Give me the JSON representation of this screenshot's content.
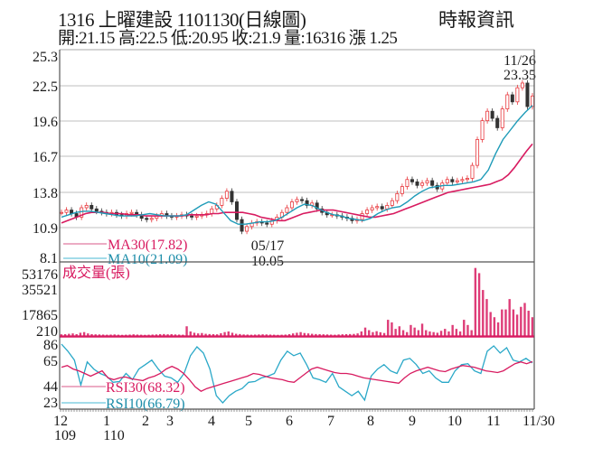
{
  "header": {
    "title": "1316  上曜建設 1101130(日線圖)",
    "brand": "時報資訊",
    "stats": "開:21.15 高:22.5 低:20.95 收:21.9 量:16316 漲 1.25"
  },
  "colors": {
    "up": "#e8383d",
    "down": "#333333",
    "ma30": "#d81b60",
    "ma10": "#1e9bb8",
    "volume": "#d81b60",
    "rsi30": "#d81b60",
    "rsi10": "#2aa8c8",
    "grid": "#cccccc",
    "frame": "#555555"
  },
  "chart_data": [
    {
      "type": "line",
      "title": "1316 上曜建設 日線圖 (price)",
      "ylabel": "",
      "yticks": [
        25.3,
        22.5,
        19.6,
        16.7,
        13.8,
        10.9,
        8.1
      ],
      "ylim": [
        8.1,
        25.3
      ],
      "grid": true,
      "x_ticks": [
        "12",
        "1",
        "2",
        "3",
        "4",
        "5",
        "6",
        "7",
        "8",
        "9",
        "10",
        "11",
        "11/30"
      ],
      "x_year_labels": [
        "109",
        "110"
      ],
      "annotations": [
        {
          "label": "11/26",
          "value": "23.35",
          "note": "high"
        },
        {
          "label": "05/17",
          "value": "10.05",
          "note": "low"
        }
      ],
      "legend": [
        {
          "name": "MA30(17.82)",
          "color": "#d81b60"
        },
        {
          "name": "MA10(21.09)",
          "color": "#1e9bb8"
        }
      ],
      "series": [
        {
          "name": "close",
          "values": [
            12.0,
            12.2,
            11.9,
            11.6,
            12.4,
            12.6,
            12.3,
            12.1,
            12.0,
            11.9,
            12.0,
            11.8,
            11.7,
            11.9,
            12.0,
            11.8,
            11.5,
            11.4,
            11.5,
            11.7,
            11.9,
            11.7,
            11.6,
            11.7,
            11.8,
            11.7,
            11.6,
            11.7,
            11.8,
            11.9,
            12.3,
            12.6,
            13.2,
            13.8,
            12.9,
            11.4,
            10.4,
            10.8,
            11.1,
            11.2,
            11.1,
            11.0,
            11.3,
            11.6,
            12.0,
            12.4,
            12.9,
            13.1,
            13.0,
            12.6,
            12.8,
            12.3,
            12.0,
            11.8,
            11.8,
            11.7,
            11.6,
            11.5,
            11.3,
            11.4,
            11.9,
            12.2,
            12.4,
            12.5,
            12.3,
            12.6,
            13.0,
            13.6,
            14.2,
            14.8,
            14.6,
            14.3,
            14.5,
            14.7,
            14.3,
            14.0,
            14.5,
            14.8,
            14.6,
            14.7,
            14.8,
            14.9,
            16.0,
            18.2,
            19.8,
            20.6,
            20.0,
            19.2,
            20.8,
            22.0,
            21.4,
            22.6,
            23.0,
            21.0,
            21.9
          ]
        },
        {
          "name": "MA30",
          "current": 17.82,
          "values": [
            11.1,
            11.3,
            11.5,
            11.7,
            11.9,
            12.0,
            12.0,
            12.0,
            11.9,
            11.9,
            11.9,
            11.8,
            11.8,
            11.8,
            11.7,
            11.7,
            11.7,
            11.7,
            11.7,
            11.7,
            11.7,
            11.8,
            11.8,
            11.8,
            11.8,
            11.9,
            11.9,
            12.0,
            12.0,
            12.0,
            12.0,
            11.9,
            11.8,
            11.6,
            11.5,
            11.4,
            11.3,
            11.3,
            11.5,
            11.7,
            11.9,
            12.0,
            12.1,
            12.2,
            12.2,
            12.2,
            12.1,
            12.0,
            11.9,
            11.8,
            11.7,
            11.6,
            11.6,
            11.7,
            11.8,
            11.9,
            12.1,
            12.3,
            12.5,
            12.7,
            12.9,
            13.1,
            13.3,
            13.5,
            13.7,
            13.8,
            13.9,
            14.0,
            14.1,
            14.2,
            14.3,
            14.4,
            14.6,
            14.8,
            15.2,
            15.8,
            16.5,
            17.2,
            17.82
          ]
        },
        {
          "name": "MA10",
          "current": 21.09,
          "values": [
            11.6,
            11.8,
            12.0,
            12.1,
            12.1,
            12.0,
            11.9,
            11.8,
            11.7,
            11.7,
            11.7,
            11.8,
            11.9,
            11.8,
            11.7,
            11.7,
            11.7,
            11.8,
            12.2,
            12.6,
            12.9,
            12.7,
            12.0,
            11.3,
            11.0,
            11.0,
            11.1,
            11.2,
            11.2,
            11.3,
            11.6,
            12.0,
            12.4,
            12.7,
            12.6,
            12.3,
            12.0,
            11.8,
            11.7,
            11.5,
            11.4,
            11.3,
            11.5,
            11.9,
            12.2,
            12.4,
            12.5,
            12.9,
            13.4,
            13.8,
            14.1,
            14.2,
            14.3,
            14.3,
            14.4,
            14.5,
            14.6,
            14.8,
            15.6,
            17.0,
            18.2,
            19.0,
            19.8,
            20.5,
            21.09
          ]
        }
      ]
    },
    {
      "type": "bar",
      "title": "成交量(張)",
      "yticks": [
        53176,
        35521,
        17865,
        210
      ],
      "ylim": [
        210,
        53176
      ],
      "series": [
        {
          "name": "volume",
          "values": [
            800,
            900,
            1200,
            1500,
            900,
            2000,
            2500,
            1500,
            900,
            800,
            700,
            600,
            500,
            600,
            700,
            500,
            400,
            500,
            600,
            800,
            600,
            500,
            400,
            500,
            600,
            700,
            900,
            1000,
            800,
            900,
            700,
            600,
            500,
            7000,
            3000,
            2000,
            1500,
            1800,
            1200,
            1000,
            900,
            800,
            1600,
            2500,
            3000,
            2000,
            1200,
            1000,
            700,
            600,
            500,
            600,
            700,
            800,
            700,
            600,
            500,
            400,
            500,
            600,
            900,
            1500,
            2000,
            2500,
            1800,
            1500,
            1200,
            1000,
            900,
            800,
            700,
            600,
            500,
            700,
            800,
            900,
            1000,
            1100,
            1500,
            3000,
            6000,
            4000,
            2500,
            3200,
            2400,
            1800,
            12000,
            10000,
            5000,
            7000,
            4000,
            2500,
            8000,
            6000,
            4000,
            9000,
            4000,
            3000,
            2500,
            2000,
            3500,
            5000,
            3000,
            8000,
            5000,
            3000,
            12000,
            8000,
            4000,
            52000,
            48000,
            35000,
            28000,
            18000,
            14000,
            10000,
            20000,
            20000,
            28000,
            20000,
            16000,
            22000,
            25000,
            19000,
            14000
          ]
        }
      ]
    },
    {
      "type": "line",
      "title": "RSI",
      "yticks": [
        86,
        65,
        44,
        23
      ],
      "ylim": [
        20,
        90
      ],
      "legend": [
        {
          "name": "RSI30(68.32)",
          "color": "#d81b60"
        },
        {
          "name": "RSI10(66.79)",
          "color": "#2aa8c8"
        }
      ],
      "series": [
        {
          "name": "RSI30",
          "current": 68.32,
          "values": [
            62,
            64,
            60,
            58,
            55,
            52,
            55,
            58,
            50,
            48,
            50,
            51,
            49,
            48,
            47,
            50,
            52,
            55,
            60,
            63,
            60,
            55,
            48,
            40,
            35,
            38,
            40,
            42,
            44,
            46,
            48,
            50,
            52,
            55,
            54,
            52,
            50,
            49,
            48,
            46,
            45,
            50,
            55,
            60,
            62,
            60,
            58,
            56,
            55,
            55,
            54,
            52,
            50,
            49,
            48,
            47,
            46,
            45,
            44,
            50,
            55,
            58,
            60,
            62,
            60,
            58,
            57,
            60,
            62,
            64,
            63,
            62,
            60,
            58,
            57,
            56,
            58,
            62,
            66,
            68,
            66,
            68.32
          ]
        },
        {
          "name": "RSI10",
          "current": 66.79,
          "values": [
            88,
            80,
            70,
            42,
            68,
            60,
            55,
            52,
            45,
            46,
            55,
            48,
            60,
            65,
            70,
            60,
            52,
            50,
            45,
            55,
            75,
            85,
            78,
            60,
            30,
            22,
            30,
            35,
            38,
            45,
            46,
            50,
            52,
            55,
            70,
            80,
            75,
            78,
            65,
            50,
            48,
            45,
            55,
            40,
            35,
            30,
            35,
            25,
            52,
            60,
            65,
            58,
            55,
            70,
            72,
            65,
            55,
            58,
            50,
            45,
            45,
            58,
            65,
            66,
            58,
            55,
            80,
            86,
            78,
            84,
            70,
            68,
            72,
            66.79
          ]
        }
      ]
    }
  ],
  "price_panel": {
    "yticks": [
      "25.3",
      "22.5",
      "19.6",
      "16.7",
      "13.8",
      "10.9",
      "8.1"
    ],
    "high_date": "11/26",
    "high_value": "23.35",
    "low_date": "05/17",
    "low_value": "10.05",
    "legend_ma30": "MA30(17.82)",
    "legend_ma10": "MA10(21.09)"
  },
  "volume_panel": {
    "title": "成交量(張)",
    "yticks": [
      "53176",
      "35521",
      "17865",
      "210"
    ]
  },
  "rsi_panel": {
    "yticks": [
      "86",
      "65",
      "44",
      "23"
    ],
    "legend_rsi30": "RSI30(68.32)",
    "legend_rsi10": "RSI10(66.79)"
  },
  "x_axis": {
    "months": [
      "12",
      "1",
      "2",
      "3",
      "4",
      "5",
      "6",
      "7",
      "8",
      "9",
      "10",
      "11",
      "11/30"
    ],
    "years": [
      "109",
      "110"
    ]
  }
}
